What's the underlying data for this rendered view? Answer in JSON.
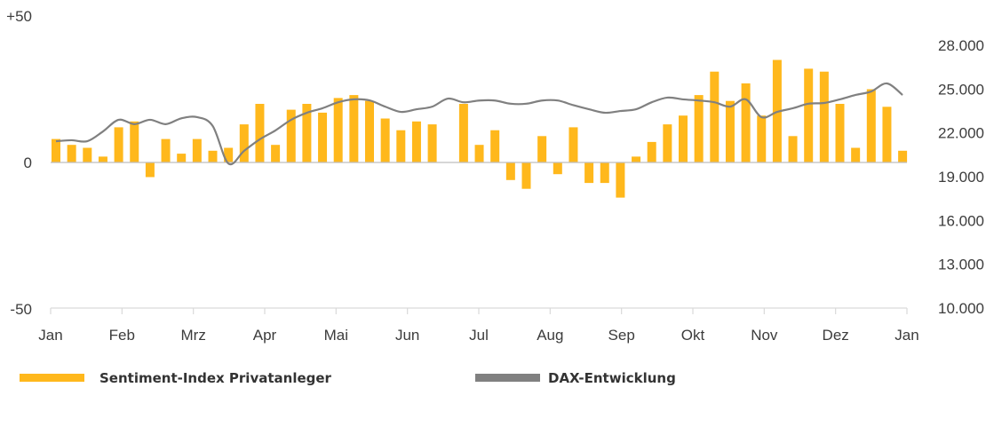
{
  "chart_data": {
    "type": "bar+line",
    "title": "",
    "categories_axis": [
      "Jan",
      "Feb",
      "Mrz",
      "Apr",
      "Mai",
      "Jun",
      "Jul",
      "Aug",
      "Sep",
      "Okt",
      "Nov",
      "Dez",
      "Jan"
    ],
    "left_axis": {
      "ylim": [
        -50,
        50
      ],
      "tick_labels": [
        "+50",
        "0",
        "-50"
      ],
      "tick_values": [
        50,
        0,
        -50
      ]
    },
    "right_axis": {
      "ylim": [
        10000,
        28000
      ],
      "tick_labels": [
        "28.000",
        "25.000",
        "22.000",
        "19.000",
        "16.000",
        "13.000",
        "10.000"
      ],
      "tick_values": [
        28000,
        25000,
        22000,
        19000,
        16000,
        13000,
        10000
      ]
    },
    "grid": false,
    "legend_position": "bottom",
    "series": [
      {
        "name": "Sentiment-Index Privatanleger",
        "type": "bar",
        "axis": "left",
        "color": "#FFB81C",
        "values": [
          8,
          6,
          5,
          2,
          12,
          14,
          -5,
          8,
          3,
          8,
          4,
          5,
          13,
          20,
          6,
          18,
          20,
          17,
          22,
          23,
          21,
          15,
          11,
          14,
          13,
          null,
          20,
          6,
          11,
          -6,
          -9,
          9,
          -4,
          12,
          -7,
          -7,
          -12,
          2,
          7,
          13,
          16,
          23,
          31,
          21,
          27,
          16,
          35,
          9,
          32,
          31,
          20,
          5,
          25,
          19,
          4
        ]
      },
      {
        "name": "DAX-Entwicklung",
        "type": "line",
        "axis": "right",
        "color": "#808080",
        "values": [
          21430,
          21500,
          21430,
          22100,
          22900,
          22600,
          22900,
          22600,
          23000,
          23080,
          22470,
          19900,
          20770,
          21560,
          22170,
          22900,
          23380,
          23690,
          24100,
          24300,
          24230,
          23800,
          23440,
          23620,
          23800,
          24350,
          24100,
          24220,
          24220,
          24000,
          24000,
          24220,
          24220,
          23900,
          23620,
          23380,
          23500,
          23620,
          24100,
          24420,
          24300,
          24220,
          24100,
          23800,
          24300,
          23080,
          23440,
          23690,
          24000,
          24050,
          24300,
          24600,
          24840,
          25390,
          24600
        ]
      }
    ]
  }
}
